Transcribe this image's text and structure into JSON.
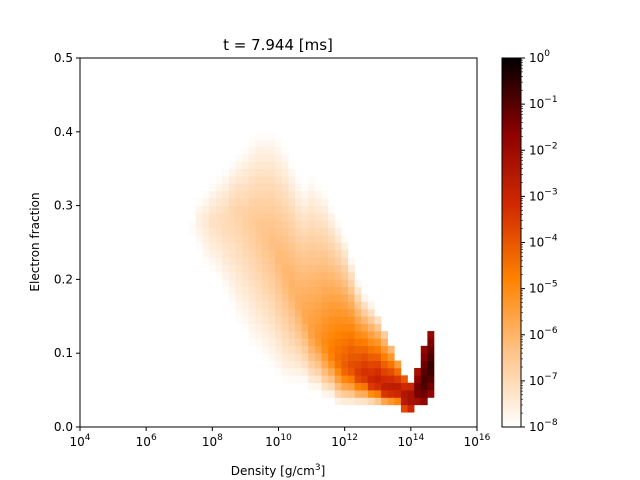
{
  "chart_data": {
    "type": "heatmap",
    "title": "t = 7.944 [ms]",
    "xlabel_base": "Density [g/cm",
    "xlabel_sup": "3",
    "xlabel_end": "]",
    "ylabel": "Electron fraction",
    "x_scale": "log",
    "xlim_log10": [
      4,
      16
    ],
    "ylim": [
      0,
      0.5
    ],
    "x_ticks": [
      {
        "base": "10",
        "exp": "4"
      },
      {
        "base": "10",
        "exp": "6"
      },
      {
        "base": "10",
        "exp": "8"
      },
      {
        "base": "10",
        "exp": "10"
      },
      {
        "base": "10",
        "exp": "12"
      },
      {
        "base": "10",
        "exp": "14"
      },
      {
        "base": "10",
        "exp": "16"
      }
    ],
    "y_ticks": [
      "0.0",
      "0.1",
      "0.2",
      "0.3",
      "0.4",
      "0.5"
    ],
    "colorbar": {
      "scale": "log",
      "range_log10": [
        -8,
        0
      ],
      "ticks": [
        {
          "base": "10",
          "exp": "0"
        },
        {
          "base": "10",
          "exp": "−1"
        },
        {
          "base": "10",
          "exp": "−2"
        },
        {
          "base": "10",
          "exp": "−3"
        },
        {
          "base": "10",
          "exp": "−4"
        },
        {
          "base": "10",
          "exp": "−5"
        },
        {
          "base": "10",
          "exp": "−6"
        },
        {
          "base": "10",
          "exp": "−7"
        },
        {
          "base": "10",
          "exp": "−8"
        }
      ],
      "colormap": "gist_heat_r",
      "colors": [
        "#ffffff",
        "#ffc48a",
        "#ff8200",
        "#d22a00",
        "#8b0000",
        "#000000"
      ]
    },
    "cell_size": {
      "dlog10_rho": 0.2,
      "dye": 0.01
    },
    "distribution_columns_note_excluded": "",
    "columns": [
      {
        "log10_rho": 7.4,
        "ye_min": 0.26,
        "ye_max": 0.28,
        "peak_ye": 0.27,
        "peak_log10_val": -7.8,
        "edge_log10_val": -8.0
      },
      {
        "log10_rho": 7.6,
        "ye_min": 0.24,
        "ye_max": 0.31,
        "peak_ye": 0.28,
        "peak_log10_val": -7.6,
        "edge_log10_val": -8.0
      },
      {
        "log10_rho": 7.8,
        "ye_min": 0.22,
        "ye_max": 0.32,
        "peak_ye": 0.28,
        "peak_log10_val": -7.4,
        "edge_log10_val": -8.0
      },
      {
        "log10_rho": 8.0,
        "ye_min": 0.21,
        "ye_max": 0.33,
        "peak_ye": 0.28,
        "peak_log10_val": -7.2,
        "edge_log10_val": -8.0
      },
      {
        "log10_rho": 8.2,
        "ye_min": 0.2,
        "ye_max": 0.34,
        "peak_ye": 0.28,
        "peak_log10_val": -7.1,
        "edge_log10_val": -8.0
      },
      {
        "log10_rho": 8.4,
        "ye_min": 0.18,
        "ye_max": 0.35,
        "peak_ye": 0.28,
        "peak_log10_val": -7.0,
        "edge_log10_val": -8.0
      },
      {
        "log10_rho": 8.6,
        "ye_min": 0.16,
        "ye_max": 0.36,
        "peak_ye": 0.29,
        "peak_log10_val": -6.9,
        "edge_log10_val": -8.0
      },
      {
        "log10_rho": 8.8,
        "ye_min": 0.14,
        "ye_max": 0.37,
        "peak_ye": 0.29,
        "peak_log10_val": -6.8,
        "edge_log10_val": -8.0
      },
      {
        "log10_rho": 9.0,
        "ye_min": 0.13,
        "ye_max": 0.38,
        "peak_ye": 0.28,
        "peak_log10_val": -6.7,
        "edge_log10_val": -8.0
      },
      {
        "log10_rho": 9.2,
        "ye_min": 0.11,
        "ye_max": 0.39,
        "peak_ye": 0.28,
        "peak_log10_val": -6.6,
        "edge_log10_val": -8.0
      },
      {
        "log10_rho": 9.4,
        "ye_min": 0.1,
        "ye_max": 0.4,
        "peak_ye": 0.27,
        "peak_log10_val": -6.5,
        "edge_log10_val": -8.0
      },
      {
        "log10_rho": 9.6,
        "ye_min": 0.09,
        "ye_max": 0.4,
        "peak_ye": 0.26,
        "peak_log10_val": -6.4,
        "edge_log10_val": -8.0
      },
      {
        "log10_rho": 9.8,
        "ye_min": 0.08,
        "ye_max": 0.4,
        "peak_ye": 0.25,
        "peak_log10_val": -6.3,
        "edge_log10_val": -8.0
      },
      {
        "log10_rho": 10.0,
        "ye_min": 0.07,
        "ye_max": 0.39,
        "peak_ye": 0.23,
        "peak_log10_val": -6.2,
        "edge_log10_val": -8.0
      },
      {
        "log10_rho": 10.2,
        "ye_min": 0.06,
        "ye_max": 0.38,
        "peak_ye": 0.21,
        "peak_log10_val": -6.1,
        "edge_log10_val": -8.0
      },
      {
        "log10_rho": 10.4,
        "ye_min": 0.06,
        "ye_max": 0.36,
        "peak_ye": 0.19,
        "peak_log10_val": -6.0,
        "edge_log10_val": -8.0
      },
      {
        "log10_rho": 10.6,
        "ye_min": 0.06,
        "ye_max": 0.34,
        "peak_ye": 0.17,
        "peak_log10_val": -5.9,
        "edge_log10_val": -8.0
      },
      {
        "log10_rho": 10.8,
        "ye_min": 0.06,
        "ye_max": 0.33,
        "peak_ye": 0.15,
        "peak_log10_val": -5.7,
        "edge_log10_val": -8.0
      },
      {
        "log10_rho": 11.0,
        "ye_min": 0.05,
        "ye_max": 0.34,
        "peak_ye": 0.13,
        "peak_log10_val": -5.5,
        "edge_log10_val": -8.0
      },
      {
        "log10_rho": 11.2,
        "ye_min": 0.05,
        "ye_max": 0.33,
        "peak_ye": 0.12,
        "peak_log10_val": -5.3,
        "edge_log10_val": -8.0
      },
      {
        "log10_rho": 11.4,
        "ye_min": 0.04,
        "ye_max": 0.32,
        "peak_ye": 0.11,
        "peak_log10_val": -5.0,
        "edge_log10_val": -8.0
      },
      {
        "log10_rho": 11.6,
        "ye_min": 0.04,
        "ye_max": 0.3,
        "peak_ye": 0.1,
        "peak_log10_val": -4.7,
        "edge_log10_val": -8.0
      },
      {
        "log10_rho": 11.8,
        "ye_min": 0.03,
        "ye_max": 0.28,
        "peak_ye": 0.09,
        "peak_log10_val": -4.4,
        "edge_log10_val": -8.0
      },
      {
        "log10_rho": 12.0,
        "ye_min": 0.03,
        "ye_max": 0.26,
        "peak_ye": 0.08,
        "peak_log10_val": -4.1,
        "edge_log10_val": -8.0
      },
      {
        "log10_rho": 12.2,
        "ye_min": 0.03,
        "ye_max": 0.23,
        "peak_ye": 0.08,
        "peak_log10_val": -3.8,
        "edge_log10_val": -8.0
      },
      {
        "log10_rho": 12.4,
        "ye_min": 0.03,
        "ye_max": 0.2,
        "peak_ye": 0.07,
        "peak_log10_val": -3.5,
        "edge_log10_val": -8.0
      },
      {
        "log10_rho": 12.6,
        "ye_min": 0.03,
        "ye_max": 0.18,
        "peak_ye": 0.07,
        "peak_log10_val": -3.2,
        "edge_log10_val": -8.0
      },
      {
        "log10_rho": 12.8,
        "ye_min": 0.03,
        "ye_max": 0.17,
        "peak_ye": 0.06,
        "peak_log10_val": -3.0,
        "edge_log10_val": -8.0
      },
      {
        "log10_rho": 13.0,
        "ye_min": 0.03,
        "ye_max": 0.15,
        "peak_ye": 0.06,
        "peak_log10_val": -2.8,
        "edge_log10_val": -7.5
      },
      {
        "log10_rho": 13.2,
        "ye_min": 0.03,
        "ye_max": 0.13,
        "peak_ye": 0.05,
        "peak_log10_val": -2.7,
        "edge_log10_val": -7.0
      },
      {
        "log10_rho": 13.4,
        "ye_min": 0.03,
        "ye_max": 0.11,
        "peak_ye": 0.05,
        "peak_log10_val": -2.6,
        "edge_log10_val": -6.5
      },
      {
        "log10_rho": 13.6,
        "ye_min": 0.03,
        "ye_max": 0.09,
        "peak_ye": 0.05,
        "peak_log10_val": -2.5,
        "edge_log10_val": -6.0
      },
      {
        "log10_rho": 13.8,
        "ye_min": 0.02,
        "ye_max": 0.07,
        "peak_ye": 0.04,
        "peak_log10_val": -2.2,
        "edge_log10_val": -4.5
      },
      {
        "log10_rho": 14.0,
        "ye_min": 0.02,
        "ye_max": 0.06,
        "peak_ye": 0.04,
        "peak_log10_val": -2.0,
        "edge_log10_val": -3.5
      },
      {
        "log10_rho": 14.2,
        "ye_min": 0.03,
        "ye_max": 0.08,
        "peak_ye": 0.05,
        "peak_log10_val": -1.2,
        "edge_log10_val": -2.5
      },
      {
        "log10_rho": 14.4,
        "ye_min": 0.03,
        "ye_max": 0.11,
        "peak_ye": 0.06,
        "peak_log10_val": -0.8,
        "edge_log10_val": -2.0
      },
      {
        "log10_rho": 14.6,
        "ye_min": 0.04,
        "ye_max": 0.13,
        "peak_ye": 0.08,
        "peak_log10_val": -0.6,
        "edge_log10_val": -2.0
      }
    ]
  }
}
